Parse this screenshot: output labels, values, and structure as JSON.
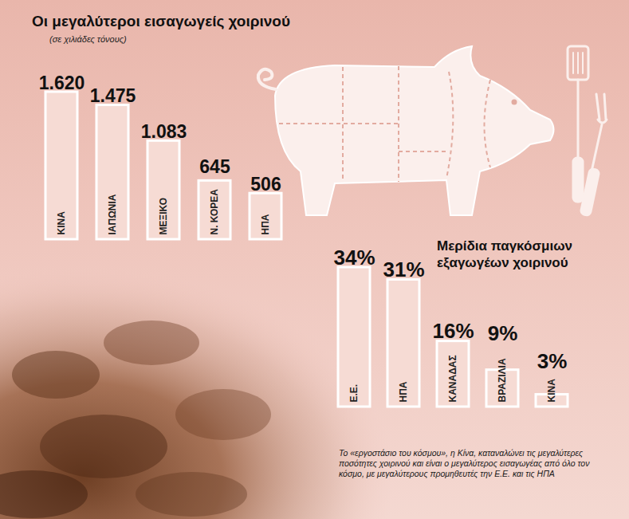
{
  "chart_data": [
    {
      "type": "bar",
      "title": "Οι μεγαλύτεροι εισαγωγείς χοιρινού",
      "subtitle": "(σε χιλιάδες τόνους)",
      "categories": [
        "ΚΙΝΑ",
        "ΙΑΠΩΝΙΑ",
        "ΜΕΞΙΚΟ",
        "Ν. ΚΟΡΕΑ",
        "ΗΠΑ"
      ],
      "values": [
        1620,
        1475,
        1083,
        645,
        506
      ],
      "value_labels": [
        "1.620",
        "1.475",
        "1.083",
        "645",
        "506"
      ],
      "data_labels": true,
      "tick_labels": "x",
      "color": "#f6dbd4"
    },
    {
      "type": "bar",
      "title": "Μερίδια παγκόσμιων εξαγωγέων χοιρινού",
      "categories": [
        "Ε.Ε.",
        "ΗΠΑ",
        "ΚΑΝΑΔΑΣ",
        "ΒΡΑΖΙΛΙΑ",
        "ΚΙΝΑ"
      ],
      "values": [
        34,
        31,
        16,
        9,
        3
      ],
      "value_labels": [
        "34%",
        "31%",
        "16%",
        "9%",
        "3%"
      ],
      "data_labels": true,
      "tick_labels": "x",
      "color": "#f6dbd4"
    }
  ],
  "caption": "Το «εργοστάσιο του κόσμου», η Κίνα, καταναλώνει τις μεγαλύτερες ποσότητες χοιρινού και είναι ο μεγαλύτερος εισαγωγέας από όλο τον κόσμο, με μεγαλύτερους προμηθευτές την Ε.Ε. και τις ΗΠΑ"
}
